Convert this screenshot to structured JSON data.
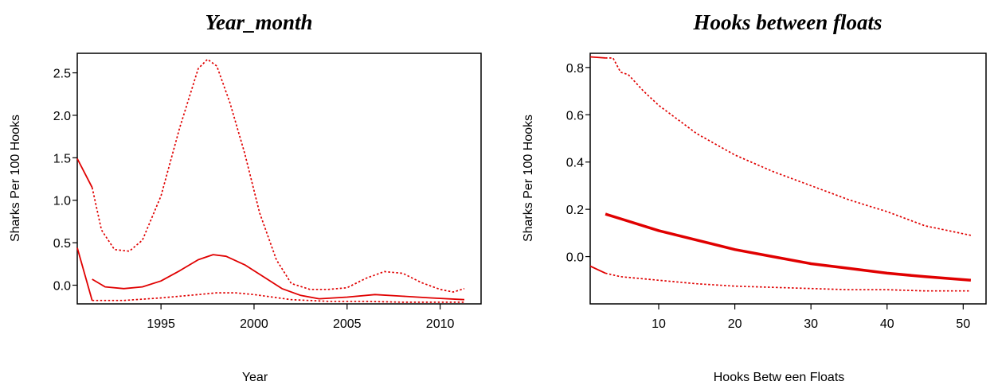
{
  "chart_data": [
    {
      "type": "line",
      "title": "Year_month",
      "xlabel": "Year",
      "ylabel": "Sharks Per 100 Hooks",
      "xlim": [
        1990.5,
        2012.2
      ],
      "ylim": [
        -0.22,
        2.73
      ],
      "xticks": [
        1995,
        2000,
        2005,
        2010
      ],
      "xtick_labels": [
        "1995",
        "2000",
        "2005",
        "2010"
      ],
      "yticks": [
        0,
        0.5,
        1,
        1.5,
        2,
        2.5
      ],
      "ytick_labels": [
        "0.0",
        "0.5",
        "1.0",
        "1.5",
        "2.0",
        "2.5"
      ],
      "color": "#e00000",
      "series": [
        {
          "style": "solid",
          "x": [
            1991.3,
            1992,
            1993,
            1994,
            1995,
            1996,
            1997,
            1997.8,
            1998.5,
            1999.5,
            2000.5,
            2001.5,
            2002.5,
            2003.5,
            2005,
            2006.5,
            2008,
            2009.5,
            2011.3
          ],
          "y": [
            0.07,
            -0.02,
            -0.04,
            -0.02,
            0.05,
            0.17,
            0.3,
            0.36,
            0.34,
            0.24,
            0.1,
            -0.04,
            -0.12,
            -0.16,
            -0.14,
            -0.11,
            -0.13,
            -0.15,
            -0.17
          ]
        },
        {
          "style": "dotted",
          "x": [
            1991.3,
            1991.8,
            1992.5,
            1993.3,
            1994,
            1995,
            1996,
            1997,
            1997.5,
            1998,
            1998.7,
            1999.5,
            2000.3,
            2001.2,
            2002,
            2003,
            2004,
            2005,
            2006,
            2007,
            2008,
            2009,
            2010,
            2010.7,
            2011.3
          ],
          "y": [
            1.15,
            0.65,
            0.42,
            0.4,
            0.53,
            1.05,
            1.85,
            2.55,
            2.66,
            2.58,
            2.15,
            1.55,
            0.85,
            0.3,
            0.02,
            -0.05,
            -0.05,
            -0.03,
            0.08,
            0.16,
            0.14,
            0.03,
            -0.05,
            -0.08,
            -0.04
          ]
        },
        {
          "style": "dotted",
          "x": [
            1991.3,
            1993,
            1995,
            1997,
            1998,
            1999,
            2000,
            2001,
            2002,
            2004,
            2006,
            2008,
            2010,
            2011.3
          ],
          "y": [
            -0.18,
            -0.18,
            -0.15,
            -0.11,
            -0.09,
            -0.09,
            -0.11,
            -0.14,
            -0.17,
            -0.19,
            -0.19,
            -0.2,
            -0.2,
            -0.2
          ]
        },
        {
          "style": "solid",
          "x": [
            1990.5,
            1991.3
          ],
          "y": [
            1.49,
            1.15
          ]
        },
        {
          "style": "solid",
          "x": [
            1990.5,
            1991.3
          ],
          "y": [
            0.44,
            -0.18
          ]
        }
      ]
    },
    {
      "type": "line",
      "title": "Hooks between floats",
      "xlabel": "Hooks Betw een Floats",
      "ylabel": "Sharks Per 100 Hooks",
      "xlim": [
        1,
        53
      ],
      "ylim": [
        -0.2,
        0.86
      ],
      "xticks": [
        10,
        20,
        30,
        40,
        50
      ],
      "xtick_labels": [
        "10",
        "20",
        "30",
        "40",
        "50"
      ],
      "yticks": [
        0,
        0.2,
        0.4,
        0.6,
        0.8
      ],
      "ytick_labels": [
        "0.0",
        "0.2",
        "0.4",
        "0.6",
        "0.8"
      ],
      "color": "#e00000",
      "series": [
        {
          "style": "thick",
          "x": [
            3,
            5,
            10,
            15,
            20,
            25,
            30,
            35,
            40,
            45,
            51
          ],
          "y": [
            0.18,
            0.16,
            0.11,
            0.07,
            0.03,
            0.0,
            -0.03,
            -0.05,
            -0.07,
            -0.085,
            -0.1
          ]
        },
        {
          "style": "dotted",
          "x": [
            3,
            4,
            5,
            6,
            8,
            10,
            15,
            20,
            25,
            30,
            35,
            40,
            45,
            51
          ],
          "y": [
            0.84,
            0.84,
            0.78,
            0.77,
            0.7,
            0.64,
            0.52,
            0.43,
            0.36,
            0.3,
            0.24,
            0.19,
            0.13,
            0.09
          ]
        },
        {
          "style": "dotted",
          "x": [
            3,
            5,
            10,
            15,
            20,
            25,
            30,
            35,
            40,
            45,
            51
          ],
          "y": [
            -0.07,
            -0.085,
            -0.1,
            -0.115,
            -0.125,
            -0.13,
            -0.135,
            -0.14,
            -0.14,
            -0.145,
            -0.145
          ]
        },
        {
          "style": "solid",
          "x": [
            1,
            3
          ],
          "y": [
            0.845,
            0.84
          ]
        },
        {
          "style": "solid",
          "x": [
            1,
            3
          ],
          "y": [
            -0.04,
            -0.07
          ]
        }
      ]
    }
  ]
}
